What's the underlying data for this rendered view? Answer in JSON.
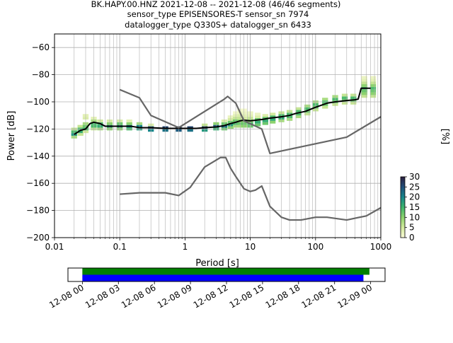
{
  "title_lines": [
    "BK.HAPY.00.HNZ   2021-12-08 -- 2021-12-08  (46/46 segments)",
    "sensor_type EPISENSORES-T sensor_sn 7974",
    "datalogger_type Q330S+ datalogger_sn 6433"
  ],
  "colorbar": {
    "label": "[%]",
    "ticks": [
      "0",
      "5",
      "10",
      "15",
      "20",
      "25",
      "30"
    ],
    "colors": [
      "#fbfbd8",
      "#d3ea9e",
      "#8cd36d",
      "#3cb46c",
      "#16858a",
      "#1f4e79",
      "#2d1e3e"
    ]
  },
  "chart_data": [
    {
      "type": "heatmap",
      "title": "",
      "xlabel": "Period [s]",
      "ylabel": "Power [dB]",
      "xscale": "log",
      "xlim": [
        0.01,
        1000
      ],
      "ylim": [
        -200,
        -50
      ],
      "x_ticks": [
        "0.01",
        "0.1",
        "1",
        "10",
        "100",
        "1000"
      ],
      "y_ticks": [
        "−200",
        "−180",
        "−160",
        "−140",
        "−120",
        "−100",
        "−80",
        "−60"
      ],
      "grid": true,
      "series": [
        {
          "name": "",
          "x": [
            0.02,
            0.025,
            0.03,
            0.035,
            0.04,
            0.05,
            0.06,
            0.08,
            0.1,
            0.15,
            0.2,
            0.3,
            0.5,
            0.8,
            1,
            1.5,
            2,
            3,
            4,
            5,
            6,
            7,
            8,
            10,
            15,
            20,
            30,
            40,
            50,
            70,
            100,
            150,
            200,
            300,
            400,
            450,
            500,
            700
          ],
          "y": [
            -124,
            -121,
            -120,
            -116,
            -115,
            -116,
            -118,
            -118,
            -118,
            -118,
            -119,
            -119,
            -119.5,
            -119.5,
            -119.5,
            -119.5,
            -119,
            -118.5,
            -117.5,
            -116,
            -115,
            -114,
            -113.5,
            -114,
            -113,
            -112,
            -111,
            -110,
            -108.5,
            -107,
            -104,
            -101,
            -100,
            -99,
            -98.5,
            -98,
            -90,
            -90
          ]
        },
        {
          "name": "",
          "x": [
            0.1,
            0.2,
            0.3,
            0.8,
            4,
            4.5,
            6,
            8,
            15,
            20,
            300,
            1000
          ],
          "y": [
            -91,
            -97,
            -110,
            -119,
            -98,
            -96,
            -101,
            -114,
            -120,
            -138,
            -126,
            -111
          ]
        },
        {
          "name": "",
          "x": [
            0.1,
            0.2,
            0.5,
            0.8,
            1.2,
            2,
            3.5,
            4.2,
            5,
            6,
            8,
            10,
            12,
            15,
            20,
            30,
            40,
            60,
            100,
            150,
            300,
            600,
            1000
          ],
          "y": [
            -168,
            -167,
            -167,
            -169,
            -163,
            -148,
            -141,
            -141,
            -149,
            -155,
            -164,
            -166,
            -165,
            -162,
            -177,
            -185,
            -187,
            -187,
            -185,
            -185,
            -187,
            -184,
            -178
          ]
        }
      ],
      "histogram": [
        {
          "x": 0.02,
          "bins": [
            [
              -126,
              8
            ],
            [
              -124,
              18
            ],
            [
              -122,
              14
            ],
            [
              -120,
              6
            ]
          ]
        },
        {
          "x": 0.025,
          "bins": [
            [
              -124,
              6
            ],
            [
              -122,
              16
            ],
            [
              -120,
              14
            ],
            [
              -118,
              6
            ]
          ]
        },
        {
          "x": 0.03,
          "bins": [
            [
              -122,
              5
            ],
            [
              -120,
              14
            ],
            [
              -118,
              12
            ],
            [
              -116,
              8
            ],
            [
              -112,
              4
            ],
            [
              -110,
              3
            ]
          ]
        },
        {
          "x": 0.04,
          "bins": [
            [
              -120,
              6
            ],
            [
              -118,
              14
            ],
            [
              -116,
              14
            ],
            [
              -114,
              8
            ],
            [
              -112,
              3
            ]
          ]
        },
        {
          "x": 0.05,
          "bins": [
            [
              -120,
              8
            ],
            [
              -118,
              16
            ],
            [
              -116,
              14
            ],
            [
              -114,
              5
            ]
          ]
        },
        {
          "x": 0.07,
          "bins": [
            [
              -120,
              10
            ],
            [
              -118,
              18
            ],
            [
              -116,
              10
            ],
            [
              -114,
              4
            ]
          ]
        },
        {
          "x": 0.1,
          "bins": [
            [
              -120,
              10
            ],
            [
              -118,
              18
            ],
            [
              -116,
              12
            ],
            [
              -114,
              4
            ]
          ]
        },
        {
          "x": 0.14,
          "bins": [
            [
              -120,
              14
            ],
            [
              -118,
              20
            ],
            [
              -116,
              10
            ],
            [
              -114,
              3
            ]
          ]
        },
        {
          "x": 0.2,
          "bins": [
            [
              -120,
              18
            ],
            [
              -118,
              20
            ],
            [
              -116,
              8
            ]
          ]
        },
        {
          "x": 0.3,
          "bins": [
            [
              -121,
              20
            ],
            [
              -119,
              24
            ],
            [
              -117,
              4
            ]
          ]
        },
        {
          "x": 0.5,
          "bins": [
            [
              -121,
              22
            ],
            [
              -119,
              26
            ]
          ]
        },
        {
          "x": 0.8,
          "bins": [
            [
              -121,
              24
            ],
            [
              -119,
              26
            ]
          ]
        },
        {
          "x": 1.2,
          "bins": [
            [
              -121,
              22
            ],
            [
              -119,
              26
            ]
          ]
        },
        {
          "x": 2,
          "bins": [
            [
              -121,
              18
            ],
            [
              -119,
              26
            ],
            [
              -117,
              6
            ]
          ]
        },
        {
          "x": 3,
          "bins": [
            [
              -120,
              16
            ],
            [
              -118,
              24
            ],
            [
              -116,
              10
            ]
          ]
        },
        {
          "x": 4,
          "bins": [
            [
              -120,
              12
            ],
            [
              -118,
              22
            ],
            [
              -116,
              12
            ],
            [
              -114,
              4
            ]
          ]
        },
        {
          "x": 5,
          "bins": [
            [
              -119,
              10
            ],
            [
              -117,
              18
            ],
            [
              -115,
              12
            ],
            [
              -113,
              5
            ],
            [
              -111,
              2
            ]
          ]
        },
        {
          "x": 6,
          "bins": [
            [
              -118,
              8
            ],
            [
              -116,
              14
            ],
            [
              -114,
              12
            ],
            [
              -112,
              6
            ],
            [
              -110,
              3
            ],
            [
              -108,
              1
            ]
          ]
        },
        {
          "x": 7,
          "bins": [
            [
              -118,
              8
            ],
            [
              -116,
              12
            ],
            [
              -114,
              10
            ],
            [
              -112,
              6
            ],
            [
              -110,
              4
            ],
            [
              -108,
              2
            ],
            [
              -106,
              1
            ]
          ]
        },
        {
          "x": 8,
          "bins": [
            [
              -118,
              10
            ],
            [
              -116,
              12
            ],
            [
              -114,
              10
            ],
            [
              -112,
              5
            ],
            [
              -110,
              3
            ],
            [
              -108,
              2
            ],
            [
              -106,
              1
            ]
          ]
        },
        {
          "x": 10,
          "bins": [
            [
              -118,
              12
            ],
            [
              -116,
              14
            ],
            [
              -114,
              10
            ],
            [
              -112,
              6
            ],
            [
              -110,
              3
            ],
            [
              -108,
              2
            ]
          ]
        },
        {
          "x": 13,
          "bins": [
            [
              -117,
              12
            ],
            [
              -115,
              16
            ],
            [
              -113,
              12
            ],
            [
              -111,
              4
            ],
            [
              -109,
              2
            ]
          ]
        },
        {
          "x": 17,
          "bins": [
            [
              -116,
              12
            ],
            [
              -114,
              16
            ],
            [
              -112,
              12
            ],
            [
              -110,
              4
            ]
          ]
        },
        {
          "x": 22,
          "bins": [
            [
              -115,
              10
            ],
            [
              -113,
              16
            ],
            [
              -111,
              14
            ],
            [
              -109,
              5
            ]
          ]
        },
        {
          "x": 30,
          "bins": [
            [
              -114,
              8
            ],
            [
              -112,
              16
            ],
            [
              -110,
              14
            ],
            [
              -108,
              6
            ]
          ]
        },
        {
          "x": 40,
          "bins": [
            [
              -113,
              8
            ],
            [
              -111,
              14
            ],
            [
              -109,
              14
            ],
            [
              -107,
              6
            ]
          ]
        },
        {
          "x": 55,
          "bins": [
            [
              -111,
              8
            ],
            [
              -109,
              14
            ],
            [
              -107,
              14
            ],
            [
              -105,
              6
            ]
          ]
        },
        {
          "x": 75,
          "bins": [
            [
              -109,
              6
            ],
            [
              -107,
              12
            ],
            [
              -105,
              14
            ],
            [
              -103,
              8
            ]
          ]
        },
        {
          "x": 100,
          "bins": [
            [
              -106,
              6
            ],
            [
              -104,
              12
            ],
            [
              -102,
              14
            ],
            [
              -100,
              8
            ]
          ]
        },
        {
          "x": 140,
          "bins": [
            [
              -104,
              6
            ],
            [
              -102,
              12
            ],
            [
              -100,
              14
            ],
            [
              -98,
              8
            ]
          ]
        },
        {
          "x": 200,
          "bins": [
            [
              -102,
              6
            ],
            [
              -100,
              12
            ],
            [
              -98,
              14
            ],
            [
              -96,
              8
            ]
          ]
        },
        {
          "x": 280,
          "bins": [
            [
              -101,
              6
            ],
            [
              -99,
              12
            ],
            [
              -97,
              14
            ],
            [
              -95,
              6
            ]
          ]
        },
        {
          "x": 380,
          "bins": [
            [
              -101,
              6
            ],
            [
              -99,
              12
            ],
            [
              -97,
              14
            ],
            [
              -95,
              6
            ]
          ]
        },
        {
          "x": 560,
          "bins": [
            [
              -96,
              6
            ],
            [
              -94,
              10
            ],
            [
              -92,
              12
            ],
            [
              -90,
              14
            ],
            [
              -88,
              10
            ],
            [
              -86,
              6
            ],
            [
              -84,
              3
            ],
            [
              -82,
              2
            ]
          ]
        },
        {
          "x": 760,
          "bins": [
            [
              -96,
              6
            ],
            [
              -94,
              10
            ],
            [
              -92,
              12
            ],
            [
              -90,
              14
            ],
            [
              -88,
              10
            ],
            [
              -86,
              6
            ],
            [
              -84,
              3
            ],
            [
              -82,
              2
            ]
          ]
        }
      ]
    },
    {
      "type": "bar",
      "title": "",
      "xlabel": "",
      "ylabel": "",
      "x_ticks": [
        "12-08 00",
        "12-08 03",
        "12-08 06",
        "12-08 09",
        "12-08 12",
        "12-08 15",
        "12-08 18",
        "12-08 21",
        "12-09 00"
      ],
      "xlim_hours": [
        -1.2,
        25.2
      ],
      "series": [
        {
          "name": "",
          "color": "#008000",
          "start_hour": 0,
          "end_hour": 23.9
        },
        {
          "name": "",
          "color": "#0000ff",
          "start_hour": 0,
          "end_hour": 23.4
        }
      ]
    }
  ]
}
